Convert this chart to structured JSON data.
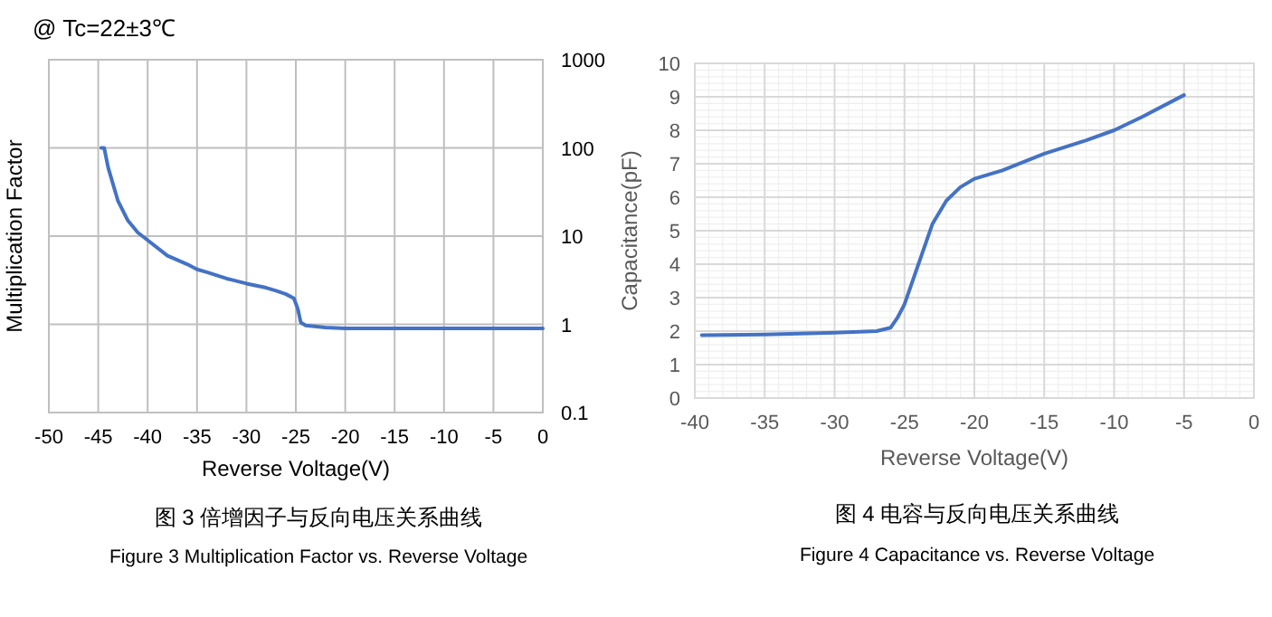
{
  "chart_data": [
    {
      "type": "line",
      "title": "@ Tc=22±3℃",
      "xlabel": "Reverse Voltage(V)",
      "ylabel": "Multiplication Factor",
      "annotations": [
        "图 3 倍增因子与反向电压关系曲线",
        "Figure 3 Multiplication Factor vs. Reverse Voltage"
      ],
      "series": [
        {
          "color": "#4472c4",
          "x": [
            -44.7,
            -44.4,
            -44,
            -43,
            -42,
            -41,
            -40,
            -38,
            -36,
            -35,
            -34,
            -32,
            -30,
            -28,
            -27,
            -26,
            -25.2,
            -24.8,
            -24.5,
            -24,
            -22,
            -20,
            -10,
            0
          ],
          "values": [
            100,
            100,
            60,
            25,
            15,
            11,
            9,
            6,
            4.8,
            4.2,
            3.9,
            3.3,
            2.9,
            2.6,
            2.4,
            2.2,
            1.97,
            1.5,
            1.05,
            0.97,
            0.92,
            0.9,
            0.9,
            0.9
          ]
        }
      ],
      "xlim": [
        -50,
        0
      ],
      "xticks": [
        -50,
        -45,
        -40,
        -35,
        -30,
        -25,
        -20,
        -15,
        -10,
        -5,
        0
      ],
      "ylim": [
        0.1,
        1000
      ],
      "yticks": [
        0.1,
        1,
        10,
        100,
        1000
      ],
      "log": "y",
      "grid": true,
      "line_style": "solid"
    },
    {
      "type": "line",
      "xlabel": "Reverse Voltage(V)",
      "ylabel": "Capacitance(pF)",
      "annotations": [
        "图 4 电容与反向电压关系曲线",
        "Figure 4 Capacitance vs. Reverse Voltage"
      ],
      "series": [
        {
          "color": "#4472c4",
          "x": [
            -39.5,
            -35,
            -30,
            -27,
            -26,
            -25.5,
            -25,
            -24,
            -23,
            -22,
            -21,
            -20,
            -18,
            -15,
            -12,
            -10,
            -8,
            -5
          ],
          "values": [
            1.88,
            1.9,
            1.95,
            2.0,
            2.1,
            2.4,
            2.8,
            4.0,
            5.2,
            5.9,
            6.3,
            6.55,
            6.8,
            7.3,
            7.7,
            8.0,
            8.4,
            9.05
          ]
        }
      ],
      "xlim": [
        -40,
        0
      ],
      "xticks": [
        -40,
        -35,
        -30,
        -25,
        -20,
        -15,
        -10,
        -5,
        0
      ],
      "ylim": [
        0,
        10
      ],
      "yticks": [
        0,
        1,
        2,
        3,
        4,
        5,
        6,
        7,
        8,
        9,
        10
      ],
      "grid": true,
      "line_style": "solid"
    }
  ]
}
